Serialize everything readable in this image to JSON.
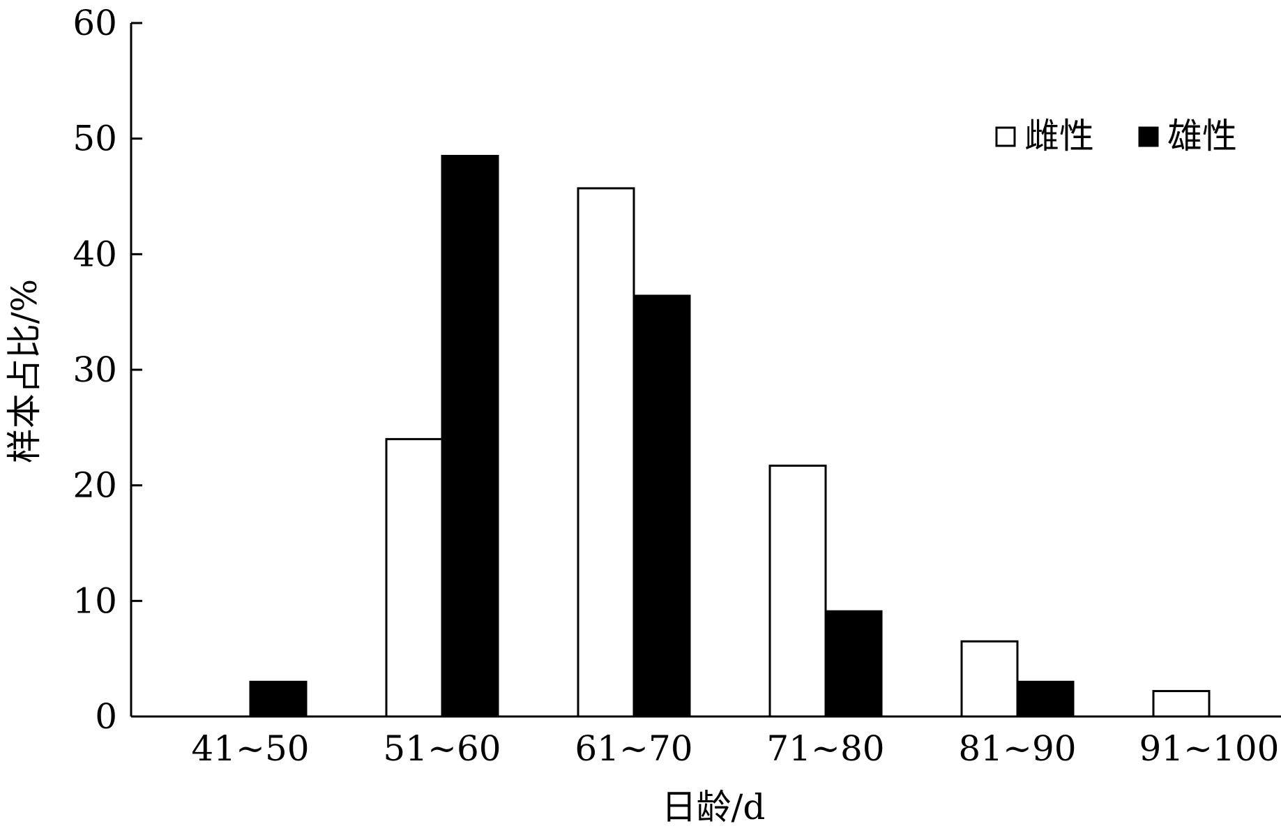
{
  "chart_data": {
    "type": "bar",
    "categories": [
      "41~50",
      "51~60",
      "61~70",
      "71~80",
      "81~90",
      "91~100"
    ],
    "series": [
      {
        "name": "雌性",
        "values": [
          0,
          24,
          45.7,
          21.7,
          6.5,
          2.2
        ],
        "color": "#ffffff",
        "stroke": "#000000"
      },
      {
        "name": "雄性",
        "values": [
          3,
          48.5,
          36.4,
          9.1,
          3,
          0
        ],
        "color": "#000000",
        "stroke": "#000000"
      }
    ],
    "xlabel": "日龄/d",
    "ylabel": "样本占比/%",
    "ylim": [
      0,
      60
    ],
    "yticks": [
      0,
      10,
      20,
      30,
      40,
      50,
      60
    ],
    "grid": false,
    "legend": "top-right"
  }
}
